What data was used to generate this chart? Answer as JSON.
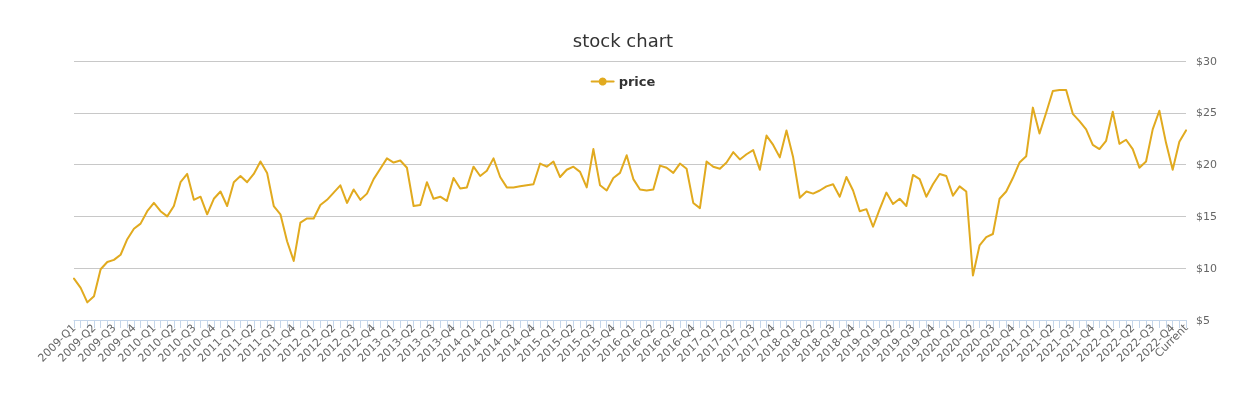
{
  "chart_data": {
    "type": "line",
    "title": "stock chart",
    "categories": [
      "2009-Q1",
      null,
      null,
      "2009-Q2",
      null,
      null,
      "2009-Q3",
      null,
      null,
      "2009-Q4",
      null,
      null,
      "2010-Q1",
      null,
      null,
      "2010-Q2",
      null,
      null,
      "2010-Q3",
      null,
      null,
      "2010-Q4",
      null,
      null,
      "2011-Q1",
      null,
      null,
      "2011-Q2",
      null,
      null,
      "2011-Q3",
      null,
      null,
      "2011-Q4",
      null,
      null,
      "2012-Q1",
      null,
      null,
      "2012-Q2",
      null,
      null,
      "2012-Q3",
      null,
      null,
      "2012-Q4",
      null,
      null,
      "2013-Q1",
      null,
      null,
      "2013-Q2",
      null,
      null,
      "2013-Q3",
      null,
      null,
      "2013-Q4",
      null,
      null,
      "2014-Q1",
      null,
      null,
      "2014-Q2",
      null,
      null,
      "2014-Q3",
      null,
      null,
      "2014-Q4",
      null,
      null,
      "2015-Q1",
      null,
      null,
      "2015-Q2",
      null,
      null,
      "2015-Q3",
      null,
      null,
      "2015-Q4",
      null,
      null,
      "2016-Q1",
      null,
      null,
      "2016-Q2",
      null,
      null,
      "2016-Q3",
      null,
      null,
      "2016-Q4",
      null,
      null,
      "2017-Q1",
      null,
      null,
      "2017-Q2",
      null,
      null,
      "2017-Q3",
      null,
      null,
      "2017-Q4",
      null,
      null,
      "2018-Q1",
      null,
      null,
      "2018-Q2",
      null,
      null,
      "2018-Q3",
      null,
      null,
      "2018-Q4",
      null,
      null,
      "2019-Q1",
      null,
      null,
      "2019-Q2",
      null,
      null,
      "2019-Q3",
      null,
      null,
      "2019-Q4",
      null,
      null,
      "2020-Q1",
      null,
      null,
      "2020-Q2",
      null,
      null,
      "2020-Q3",
      null,
      null,
      "2020-Q4",
      null,
      null,
      "2021-Q1",
      null,
      null,
      "2021-Q2",
      null,
      null,
      "2021-Q3",
      null,
      null,
      "2021-Q4",
      null,
      null,
      "2022-Q1",
      null,
      null,
      "2022-Q2",
      null,
      null,
      "2022-Q3",
      null,
      null,
      "2022-Q4",
      null,
      "Current"
    ],
    "series": [
      {
        "name": "price",
        "color": "#e1aa1f",
        "values": [
          9.0,
          8.1,
          6.7,
          7.3,
          9.9,
          10.6,
          10.8,
          11.3,
          12.8,
          13.8,
          14.3,
          15.5,
          16.3,
          15.5,
          15.0,
          16.0,
          18.3,
          19.1,
          16.6,
          16.9,
          15.2,
          16.7,
          17.4,
          16.0,
          18.3,
          18.9,
          18.3,
          19.1,
          20.3,
          19.2,
          16.0,
          15.2,
          12.6,
          10.7,
          14.4,
          14.8,
          14.8,
          16.1,
          16.6,
          17.3,
          18.0,
          16.3,
          17.6,
          16.6,
          17.2,
          18.6,
          19.6,
          20.6,
          20.2,
          20.4,
          19.7,
          16.0,
          16.1,
          18.3,
          16.7,
          16.9,
          16.5,
          18.7,
          17.7,
          17.8,
          19.8,
          18.9,
          19.4,
          20.6,
          18.8,
          17.8,
          17.8,
          17.9,
          18.0,
          18.1,
          20.1,
          19.8,
          20.3,
          18.8,
          19.5,
          19.8,
          19.3,
          17.8,
          21.5,
          18.0,
          17.5,
          18.7,
          19.2,
          20.9,
          18.6,
          17.6,
          17.5,
          17.6,
          19.9,
          19.7,
          19.2,
          20.1,
          19.6,
          16.3,
          15.8,
          20.3,
          19.8,
          19.6,
          20.2,
          21.2,
          20.5,
          21.0,
          21.4,
          19.5,
          22.8,
          21.9,
          20.7,
          23.3,
          20.7,
          16.8,
          17.4,
          17.2,
          17.5,
          17.9,
          18.1,
          16.9,
          18.8,
          17.5,
          15.5,
          15.7,
          14.0,
          15.7,
          17.3,
          16.2,
          16.7,
          16.0,
          19.0,
          18.6,
          16.9,
          18.1,
          19.1,
          18.9,
          17.0,
          17.9,
          17.4,
          9.3,
          12.2,
          13.0,
          13.3,
          16.7,
          17.4,
          18.7,
          20.2,
          20.8,
          25.5,
          23.0,
          25.0,
          27.1,
          27.2,
          27.2,
          24.9,
          24.2,
          23.4,
          21.9,
          21.5,
          22.3,
          25.1,
          22.0,
          22.4,
          21.5,
          19.7,
          20.3,
          23.4,
          25.2,
          22.1,
          19.5,
          22.2,
          23.3
        ]
      }
    ],
    "ylim": [
      5,
      30
    ],
    "yticks": [
      {
        "value": 5,
        "label": "$5"
      },
      {
        "value": 10,
        "label": "$10"
      },
      {
        "value": 15,
        "label": "$15"
      },
      {
        "value": 20,
        "label": "$20"
      },
      {
        "value": 25,
        "label": "$25"
      },
      {
        "value": 30,
        "label": "$30"
      }
    ],
    "grid": "y",
    "legend": "top",
    "marker": "none"
  }
}
